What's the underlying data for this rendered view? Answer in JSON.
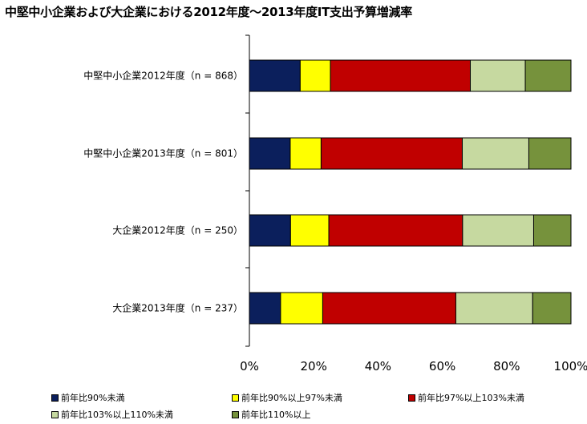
{
  "chart_data": {
    "type": "bar",
    "orientation": "horizontal",
    "stacked": true,
    "title": "中堅中小企業および大企業における2012年度～2013年度IT支出予算増減率",
    "categories": [
      "中堅中小企業2012年度（n = 868）",
      "中堅中小企業2013年度（n = 801）",
      "大企業2012年度（n = 250）",
      "大企業2013年度（n = 237）"
    ],
    "series": [
      {
        "name": "前年比90%未満",
        "color": "#0b1f5c",
        "values": [
          15.8,
          12.7,
          12.8,
          9.7
        ]
      },
      {
        "name": "前年比90%以上97%未満",
        "color": "#ffff00",
        "values": [
          9.4,
          9.6,
          11.9,
          13.1
        ]
      },
      {
        "name": "前年比97%以上103%未満",
        "color": "#c00000",
        "values": [
          43.5,
          43.9,
          41.6,
          41.4
        ]
      },
      {
        "name": "前年比103%以上110%未満",
        "color": "#c6d9a0",
        "values": [
          17.1,
          20.7,
          22.1,
          23.9
        ]
      },
      {
        "name": "前年比110%以上",
        "color": "#76923c",
        "values": [
          14.2,
          13.1,
          11.6,
          11.9
        ]
      }
    ],
    "xlim": [
      0,
      100
    ],
    "xticks": [
      "0%",
      "20%",
      "40%",
      "60%",
      "80%",
      "100%"
    ],
    "grid": false,
    "legend_position": "bottom"
  }
}
